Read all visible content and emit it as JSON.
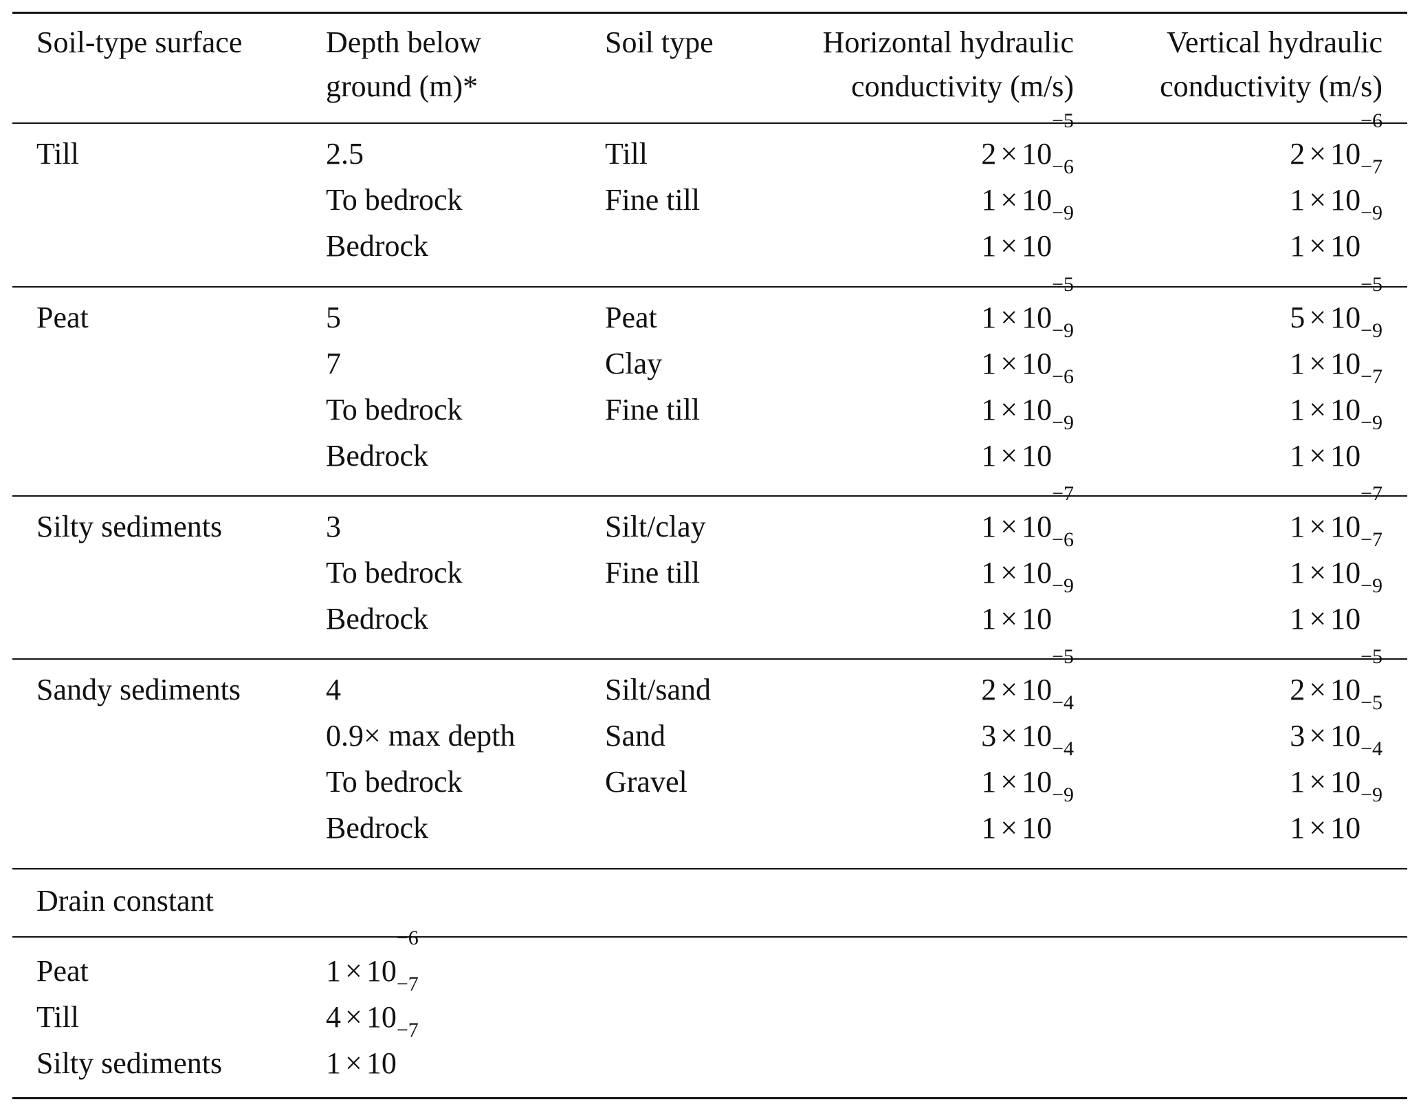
{
  "table": {
    "headers": [
      "Soil-type surface",
      "Depth below ground (m)*",
      "Soil type",
      "Horizontal hydraulic conductivity (m/s)",
      "Vertical hydraulic conductivity (m/s)"
    ],
    "header_lines": {
      "col1": [
        "Soil-type surface"
      ],
      "col2": [
        "Depth below",
        "ground (m)*"
      ],
      "col3": [
        "Soil type"
      ],
      "col4": [
        "Horizontal hydraulic",
        "conductivity (m/s)"
      ],
      "col5": [
        "Vertical hydraulic",
        "conductivity (m/s)"
      ]
    },
    "sections": [
      {
        "surface": "Till",
        "rows": [
          {
            "depth": "2.5",
            "soil": "Till",
            "kh": {
              "m": "2",
              "e": "−5"
            },
            "kv": {
              "m": "2",
              "e": "−6"
            }
          },
          {
            "depth": "To bedrock",
            "soil": "Fine till",
            "kh": {
              "m": "1",
              "e": "−6"
            },
            "kv": {
              "m": "1",
              "e": "−7"
            }
          },
          {
            "depth": "Bedrock",
            "soil": "",
            "kh": {
              "m": "1",
              "e": "−9"
            },
            "kv": {
              "m": "1",
              "e": "−9"
            }
          }
        ]
      },
      {
        "surface": "Peat",
        "rows": [
          {
            "depth": "5",
            "soil": "Peat",
            "kh": {
              "m": "1",
              "e": "−5"
            },
            "kv": {
              "m": "5",
              "e": "−5"
            }
          },
          {
            "depth": "7",
            "soil": "Clay",
            "kh": {
              "m": "1",
              "e": "−9"
            },
            "kv": {
              "m": "1",
              "e": "−9"
            }
          },
          {
            "depth": "To bedrock",
            "soil": "Fine till",
            "kh": {
              "m": "1",
              "e": "−6"
            },
            "kv": {
              "m": "1",
              "e": "−7"
            }
          },
          {
            "depth": "Bedrock",
            "soil": "",
            "kh": {
              "m": "1",
              "e": "−9"
            },
            "kv": {
              "m": "1",
              "e": "−9"
            }
          }
        ]
      },
      {
        "surface": "Silty sediments",
        "rows": [
          {
            "depth": "3",
            "soil": "Silt/clay",
            "kh": {
              "m": "1",
              "e": "−7"
            },
            "kv": {
              "m": "1",
              "e": "−7"
            }
          },
          {
            "depth": "To bedrock",
            "soil": "Fine till",
            "kh": {
              "m": "1",
              "e": "−6"
            },
            "kv": {
              "m": "1",
              "e": "−7"
            }
          },
          {
            "depth": "Bedrock",
            "soil": "",
            "kh": {
              "m": "1",
              "e": "−9"
            },
            "kv": {
              "m": "1",
              "e": "−9"
            }
          }
        ]
      },
      {
        "surface": "Sandy sediments",
        "rows": [
          {
            "depth": "4",
            "soil": "Silt/sand",
            "kh": {
              "m": "2",
              "e": "−5"
            },
            "kv": {
              "m": "2",
              "e": "−5"
            }
          },
          {
            "depth": "0.9× max depth",
            "soil": "Sand",
            "kh": {
              "m": "3",
              "e": "−4"
            },
            "kv": {
              "m": "3",
              "e": "−5"
            }
          },
          {
            "depth": "To bedrock",
            "soil": "Gravel",
            "kh": {
              "m": "1",
              "e": "−4"
            },
            "kv": {
              "m": "1",
              "e": "−4"
            }
          },
          {
            "depth": "Bedrock",
            "soil": "",
            "kh": {
              "m": "1",
              "e": "−9"
            },
            "kv": {
              "m": "1",
              "e": "−9"
            }
          }
        ]
      }
    ],
    "drain": {
      "title": "Drain constant",
      "rows": [
        {
          "label": "Peat",
          "value": {
            "m": "1",
            "e": "−6"
          }
        },
        {
          "label": "Till",
          "value": {
            "m": "4",
            "e": "−7"
          }
        },
        {
          "label": "Silty sediments",
          "value": {
            "m": "1",
            "e": "−7"
          }
        }
      ]
    },
    "times_symbol": "×",
    "base": "10"
  }
}
